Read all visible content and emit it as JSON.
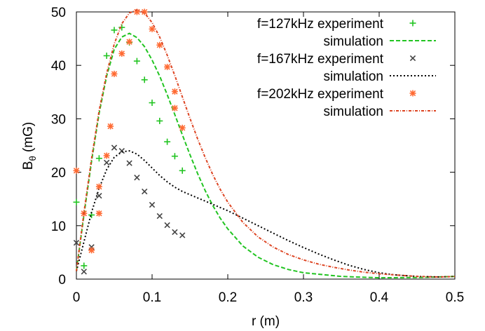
{
  "chart_data": {
    "type": "scatter",
    "xlabel": "r (m)",
    "ylabel_main": "B",
    "ylabel_sub": "θ",
    "ylabel_unit": " (mG)",
    "xlim": [
      0,
      0.5
    ],
    "ylim": [
      0,
      50
    ],
    "xticks": [
      0,
      0.1,
      0.2,
      0.3,
      0.4,
      0.5
    ],
    "xtick_labels": [
      "0",
      "0.1",
      "0.2",
      "0.3",
      "0.4",
      "0.5"
    ],
    "yticks": [
      0,
      10,
      20,
      30,
      40,
      50
    ],
    "ytick_labels": [
      "0",
      "10",
      "20",
      "30",
      "40",
      "50"
    ],
    "grid": false,
    "legend_position": "top-right",
    "series": [
      {
        "name": "f=127kHz experiment",
        "kind": "points",
        "marker": "plus",
        "color": "#22c422",
        "points": [
          [
            0,
            14.4
          ],
          [
            0.01,
            2.5
          ],
          [
            0.02,
            12
          ],
          [
            0.03,
            22.6
          ],
          [
            0.04,
            41.8
          ],
          [
            0.05,
            46.6
          ],
          [
            0.06,
            47.1
          ],
          [
            0.07,
            44.3
          ],
          [
            0.08,
            40.8
          ],
          [
            0.09,
            37.3
          ],
          [
            0.1,
            33
          ],
          [
            0.11,
            29.6
          ],
          [
            0.12,
            25.7
          ],
          [
            0.13,
            23
          ],
          [
            0.14,
            20.3
          ]
        ]
      },
      {
        "name": "simulation",
        "kind": "line",
        "dash": "6,3",
        "color": "#22c422",
        "points": [
          [
            0,
            1.5
          ],
          [
            0.01,
            12
          ],
          [
            0.02,
            22
          ],
          [
            0.03,
            31
          ],
          [
            0.04,
            38
          ],
          [
            0.05,
            43
          ],
          [
            0.06,
            45.3
          ],
          [
            0.07,
            46
          ],
          [
            0.08,
            45.2
          ],
          [
            0.09,
            43.5
          ],
          [
            0.1,
            41
          ],
          [
            0.11,
            38
          ],
          [
            0.12,
            34.5
          ],
          [
            0.13,
            30.8
          ],
          [
            0.14,
            27
          ],
          [
            0.15,
            23.3
          ],
          [
            0.16,
            19.8
          ],
          [
            0.17,
            16.6
          ],
          [
            0.18,
            13.8
          ],
          [
            0.19,
            11.4
          ],
          [
            0.2,
            9.4
          ],
          [
            0.22,
            6.2
          ],
          [
            0.24,
            4.1
          ],
          [
            0.26,
            2.7
          ],
          [
            0.28,
            1.8
          ],
          [
            0.3,
            1.2
          ],
          [
            0.35,
            0.5
          ],
          [
            0.4,
            0.25
          ],
          [
            0.45,
            0.3
          ],
          [
            0.5,
            0.5
          ]
        ]
      },
      {
        "name": "f=167kHz experiment",
        "kind": "points",
        "marker": "cross",
        "color": "#444444",
        "points": [
          [
            0,
            6.8
          ],
          [
            0.01,
            1.4
          ],
          [
            0.02,
            6
          ],
          [
            0.03,
            15.6
          ],
          [
            0.04,
            21.8
          ],
          [
            0.05,
            24.6
          ],
          [
            0.06,
            24
          ],
          [
            0.07,
            21.7
          ],
          [
            0.08,
            19
          ],
          [
            0.09,
            16.4
          ],
          [
            0.1,
            13.9
          ],
          [
            0.11,
            11.8
          ],
          [
            0.12,
            10.1
          ],
          [
            0.13,
            8.8
          ],
          [
            0.14,
            8.2
          ]
        ]
      },
      {
        "name": "simulation",
        "kind": "line",
        "dash": "2,3",
        "color": "#000000",
        "points": [
          [
            0,
            1.5
          ],
          [
            0.01,
            7
          ],
          [
            0.02,
            12.5
          ],
          [
            0.03,
            17
          ],
          [
            0.04,
            20.5
          ],
          [
            0.05,
            22.8
          ],
          [
            0.06,
            23.8
          ],
          [
            0.07,
            24
          ],
          [
            0.08,
            23.4
          ],
          [
            0.09,
            22.2
          ],
          [
            0.1,
            20.8
          ],
          [
            0.11,
            19.4
          ],
          [
            0.12,
            18.2
          ],
          [
            0.13,
            17.2
          ],
          [
            0.14,
            16.4
          ],
          [
            0.15,
            15.8
          ],
          [
            0.16,
            15.2
          ],
          [
            0.17,
            14.6
          ],
          [
            0.18,
            14
          ],
          [
            0.19,
            13.4
          ],
          [
            0.2,
            12.8
          ],
          [
            0.22,
            11.4
          ],
          [
            0.24,
            10
          ],
          [
            0.26,
            8.6
          ],
          [
            0.28,
            7.2
          ],
          [
            0.3,
            5.9
          ],
          [
            0.32,
            4.7
          ],
          [
            0.34,
            3.6
          ],
          [
            0.36,
            2.6
          ],
          [
            0.38,
            1.8
          ],
          [
            0.4,
            1.2
          ],
          [
            0.42,
            0.8
          ],
          [
            0.45,
            0.5
          ],
          [
            0.48,
            0.4
          ],
          [
            0.5,
            0.5
          ]
        ]
      },
      {
        "name": "f=202kHz experiment",
        "kind": "points",
        "marker": "asterisk",
        "color": "#ff6a33",
        "points": [
          [
            0,
            20.3
          ],
          [
            0.01,
            12.3
          ],
          [
            0.02,
            5.4
          ],
          [
            0.03,
            12.3
          ],
          [
            0.03,
            17.3
          ],
          [
            0.04,
            23.1
          ],
          [
            0.05,
            38.4
          ],
          [
            0.06,
            42.2
          ],
          [
            0.07,
            44.4
          ],
          [
            0.08,
            50
          ],
          [
            0.09,
            50
          ],
          [
            0.1,
            46.8
          ],
          [
            0.11,
            43.8
          ],
          [
            0.12,
            39.7
          ],
          [
            0.13,
            35.1
          ],
          [
            0.13,
            32
          ],
          [
            0.14,
            28.3
          ],
          [
            0.045,
            28.6
          ]
        ]
      },
      {
        "name": "simulation",
        "kind": "line",
        "dash": "4,2,1,2",
        "color": "#dd4422",
        "points": [
          [
            0,
            1.5
          ],
          [
            0.01,
            12.5
          ],
          [
            0.02,
            22.5
          ],
          [
            0.03,
            31.5
          ],
          [
            0.04,
            38.5
          ],
          [
            0.05,
            44
          ],
          [
            0.06,
            47.8
          ],
          [
            0.07,
            49.8
          ],
          [
            0.08,
            50.4
          ],
          [
            0.09,
            49.8
          ],
          [
            0.1,
            48
          ],
          [
            0.11,
            45.3
          ],
          [
            0.12,
            41.9
          ],
          [
            0.13,
            38.1
          ],
          [
            0.14,
            34.1
          ],
          [
            0.15,
            30.1
          ],
          [
            0.16,
            26.3
          ],
          [
            0.17,
            22.8
          ],
          [
            0.18,
            19.6
          ],
          [
            0.19,
            16.8
          ],
          [
            0.2,
            14.4
          ],
          [
            0.22,
            10.6
          ],
          [
            0.24,
            7.9
          ],
          [
            0.26,
            6
          ],
          [
            0.28,
            4.6
          ],
          [
            0.3,
            3.6
          ],
          [
            0.32,
            2.8
          ],
          [
            0.34,
            2.2
          ],
          [
            0.36,
            1.7
          ],
          [
            0.38,
            1.3
          ],
          [
            0.4,
            1
          ],
          [
            0.45,
            0.5
          ],
          [
            0.48,
            0.4
          ],
          [
            0.5,
            0.5
          ]
        ]
      }
    ]
  }
}
